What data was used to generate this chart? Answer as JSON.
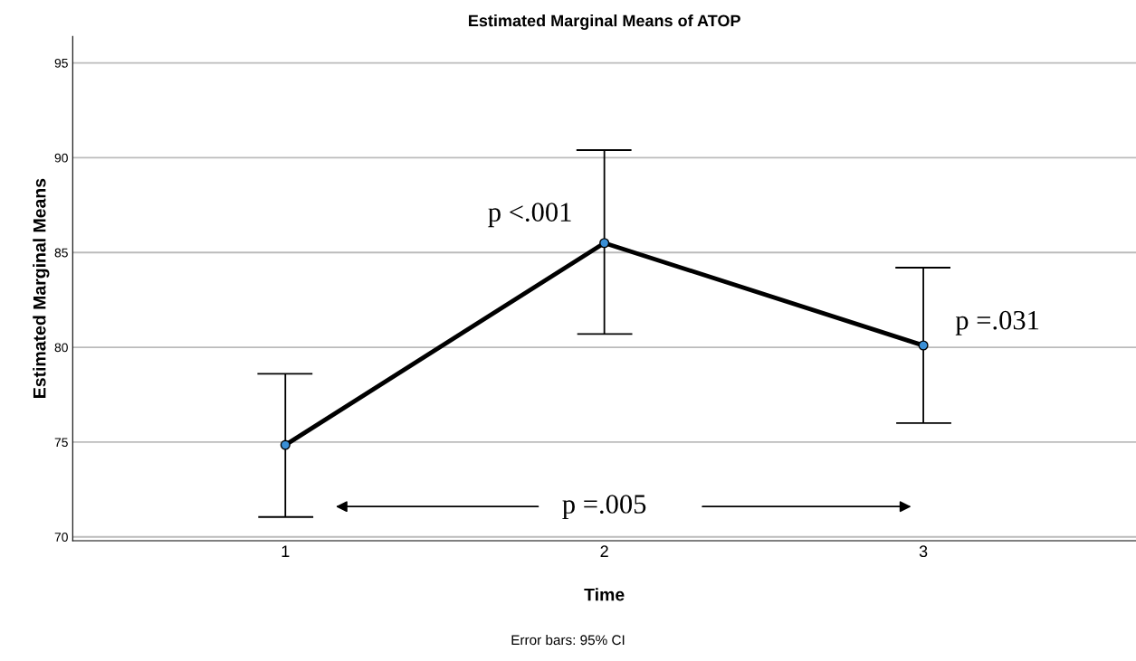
{
  "chart_data": {
    "type": "line",
    "title": "Estimated Marginal Means of ATOP",
    "xlabel": "Time",
    "ylabel": "Estimated Marginal Means",
    "categories": [
      "1",
      "2",
      "3"
    ],
    "color": "#000000",
    "values": [
      74.85,
      85.5,
      80.1
    ],
    "errors": [
      [
        71.05,
        78.6
      ],
      [
        80.7,
        90.4
      ],
      [
        76.0,
        84.2
      ]
    ],
    "marker": "circle",
    "line_style": "solid",
    "ylim": [
      69.8,
      96.4
    ],
    "yticks": [
      70,
      75,
      80,
      85,
      90,
      95
    ],
    "grid": "y",
    "annotations": [
      "p <.001",
      "p =.031",
      "p =.005",
      "Error bars: 95% CI"
    ]
  }
}
